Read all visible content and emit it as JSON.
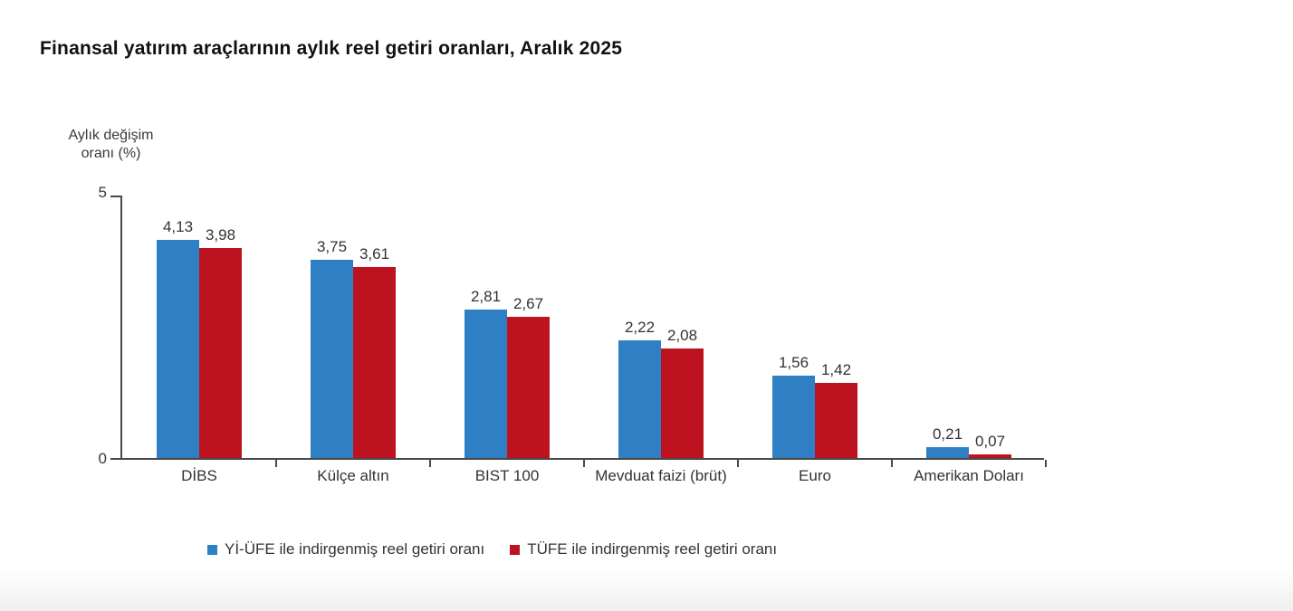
{
  "title": "Finansal yatırım araçlarının aylık reel getiri oranları, Aralık 2025",
  "y_axis": {
    "label_line1": "Aylık değişim",
    "label_line2": "oranı (%)",
    "tick_top": "5",
    "tick_bottom": "0"
  },
  "chart_data": {
    "type": "bar",
    "title": "Finansal yatırım araçlarının aylık reel getiri oranları, Aralık 2025",
    "ylabel": "Aylık değişim oranı (%)",
    "xlabel": "",
    "ylim": [
      0,
      5
    ],
    "yticks": [
      0,
      5
    ],
    "grid": false,
    "legend_position": "bottom",
    "categories": [
      "DİBS",
      "Külçe altın",
      "BIST 100",
      "Mevduat faizi (brüt)",
      "Euro",
      "Amerikan Doları"
    ],
    "series": [
      {
        "name": "Yİ-ÜFE ile indirgenmiş reel getiri oranı",
        "color": "#2E7FC4",
        "values": [
          4.13,
          3.75,
          2.81,
          2.22,
          1.56,
          0.21
        ],
        "labels": [
          "4,13",
          "3,75",
          "2,81",
          "2,22",
          "1,56",
          "0,21"
        ]
      },
      {
        "name": "TÜFE ile indirgenmiş reel getiri oranı",
        "color": "#BD1320",
        "values": [
          3.98,
          3.61,
          2.67,
          2.08,
          1.42,
          0.07
        ],
        "labels": [
          "3,98",
          "3,61",
          "2,67",
          "2,08",
          "1,42",
          "0,07"
        ]
      }
    ]
  }
}
